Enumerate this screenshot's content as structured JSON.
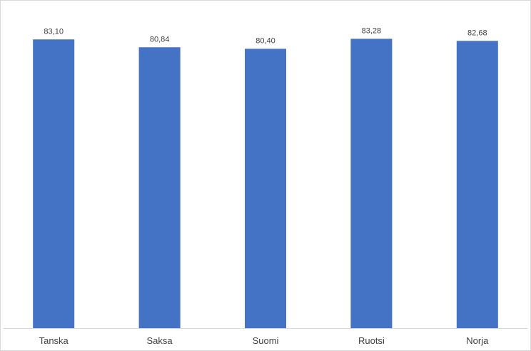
{
  "chart_data": {
    "type": "bar",
    "categories": [
      "Tanska",
      "Saksa",
      "Suomi",
      "Ruotsi",
      "Norja"
    ],
    "values": [
      83.1,
      80.84,
      80.4,
      83.28,
      82.68
    ],
    "value_labels": [
      "83,10",
      "80,84",
      "80,40",
      "83,28",
      "82,68"
    ],
    "title": "",
    "xlabel": "",
    "ylabel": "",
    "ylim": [
      0,
      85
    ],
    "grid": false,
    "legend": "none",
    "bar_color": "#4472c4",
    "axis_color": "#d9d9d9"
  }
}
